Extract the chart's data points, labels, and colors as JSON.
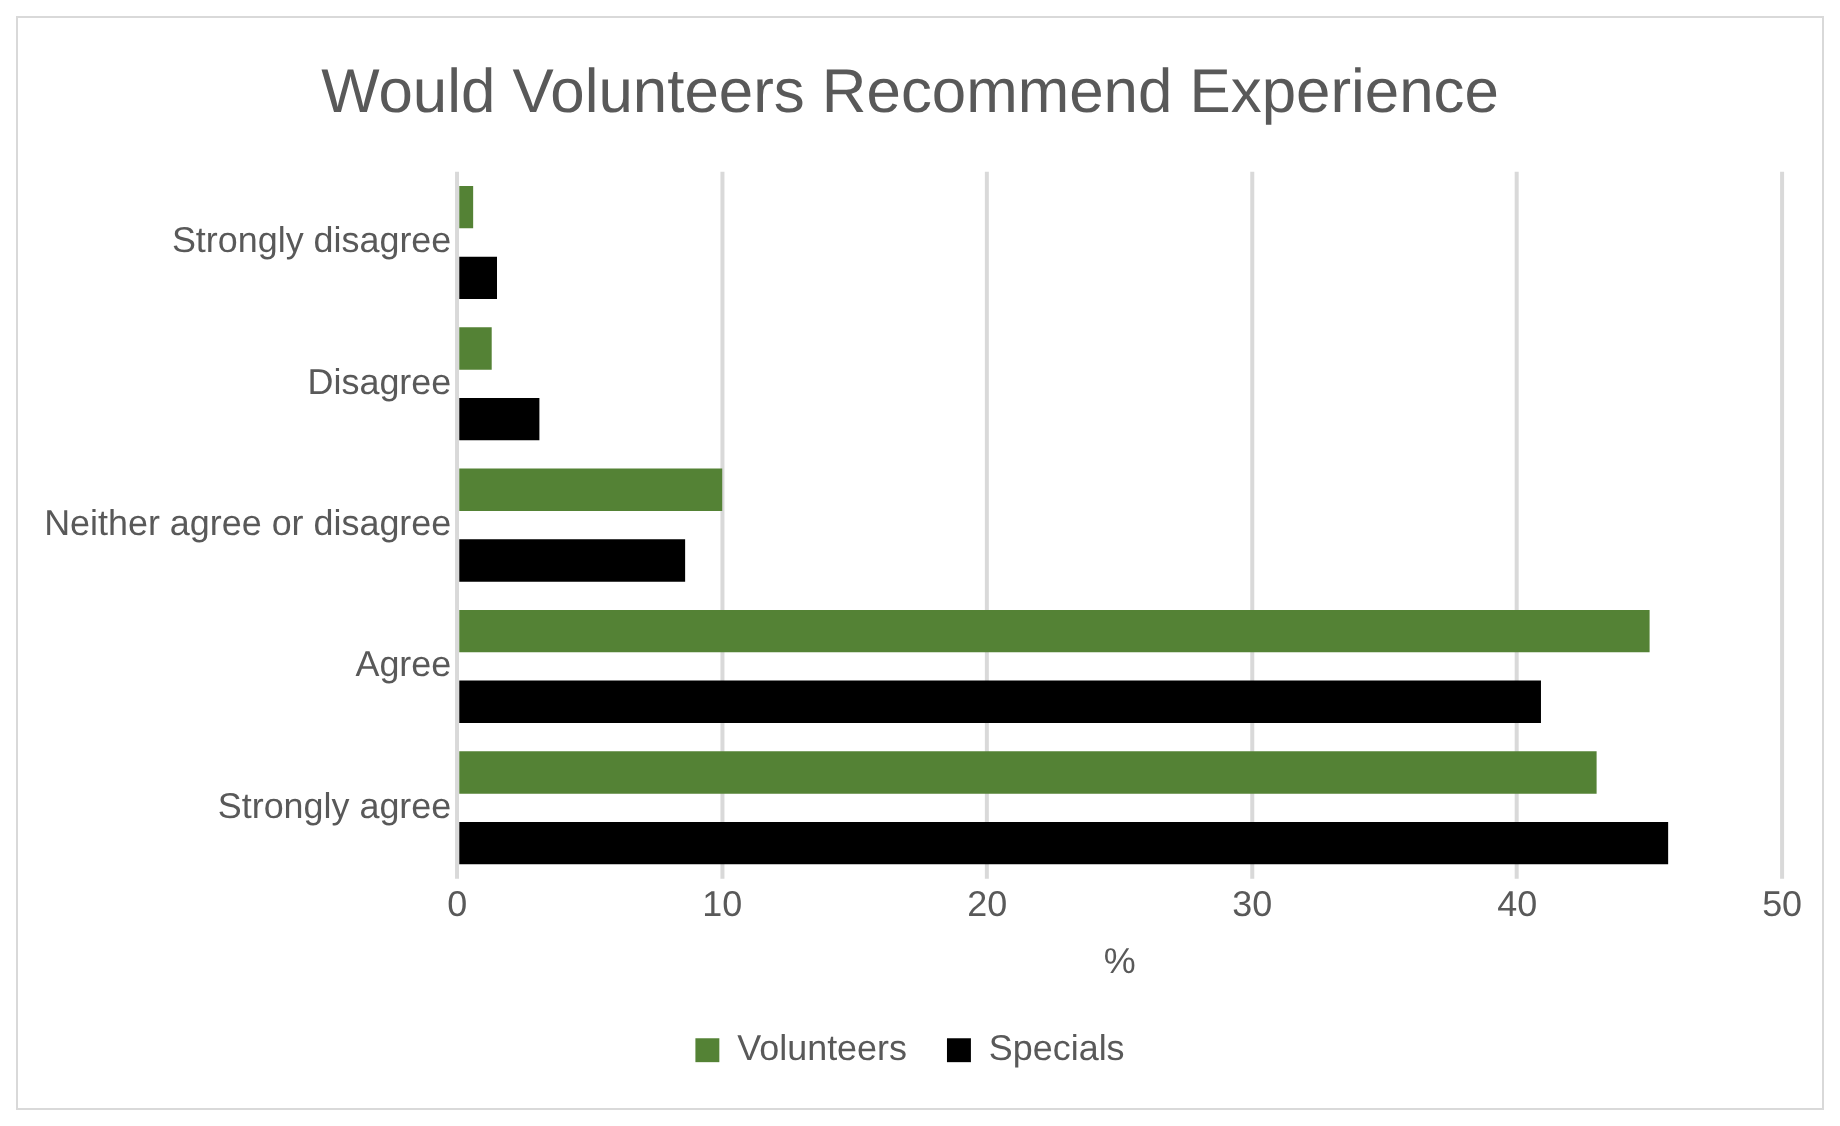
{
  "chart_data": {
    "type": "bar",
    "orientation": "horizontal",
    "title": "Would Volunteers Recommend Experience",
    "xlabel": "%",
    "categories": [
      "Strongly disagree",
      "Disagree",
      "Neither agree or disagree",
      "Agree",
      "Strongly agree"
    ],
    "series": [
      {
        "name": "Volunteers",
        "color": "#548235",
        "values": [
          0.6,
          1.3,
          10.0,
          45.0,
          43.0
        ]
      },
      {
        "name": "Specials",
        "color": "#000000",
        "values": [
          1.5,
          3.1,
          8.6,
          40.9,
          45.7
        ]
      }
    ],
    "xlim": [
      0,
      50
    ],
    "xticks": [
      0,
      10,
      20,
      30,
      40,
      50
    ],
    "grid": "x",
    "legend": "bottom"
  }
}
